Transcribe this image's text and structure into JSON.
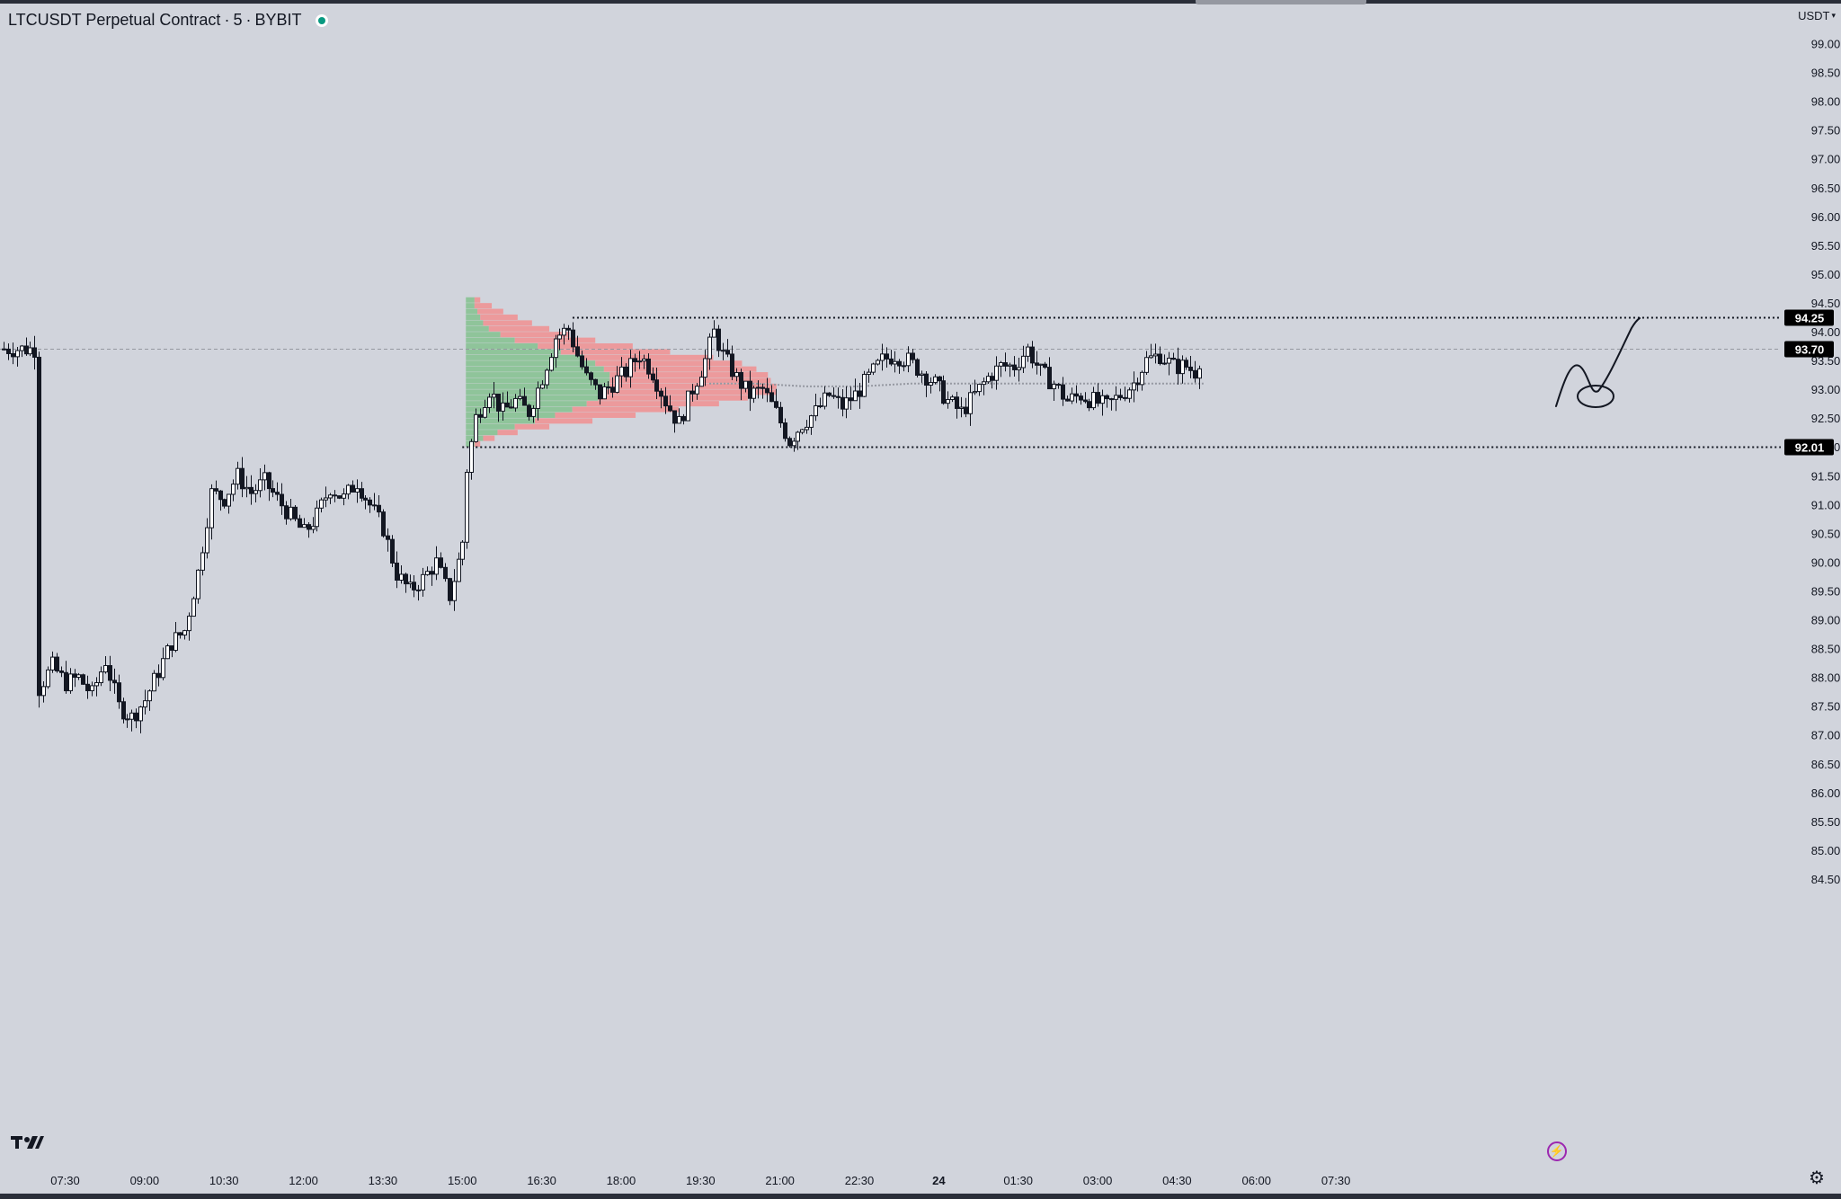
{
  "header": {
    "symbol": "LTCUSDT Perpetual Contract",
    "interval": "5",
    "exchange": "BYBIT",
    "separator": "·",
    "market_status": "open"
  },
  "price_scale": {
    "currency_label": "USDT",
    "currency_caret": "▾"
  },
  "footer": {
    "go_to_realtime_glyph": "⚡",
    "settings_glyph": "⚙"
  },
  "colors": {
    "background": "#d1d4dc",
    "volume_up": "#8fc49a",
    "volume_down": "#ec9a9c",
    "label_bg": "#000000",
    "label_fg": "#ffffff",
    "live_dot": "#089981",
    "replay_icon": "#9c27b0"
  },
  "icons": [
    "tradingview-logo-icon",
    "lightning-bolt-icon",
    "gear-icon",
    "chevron-down-icon",
    "status-dot-icon"
  ],
  "chart_data": {
    "type": "candlestick",
    "title": "LTCUSDT Perpetual Contract · 5 · BYBIT",
    "y_ticks": [
      "99.00",
      "98.50",
      "98.00",
      "97.50",
      "97.00",
      "96.50",
      "96.00",
      "95.50",
      "95.00",
      "94.50",
      "94.00",
      "93.50",
      "93.00",
      "92.50",
      "92.00",
      "91.50",
      "91.00",
      "90.50",
      "90.00",
      "89.50",
      "89.00",
      "88.50",
      "88.00",
      "87.50",
      "87.00",
      "86.50",
      "86.00",
      "85.50",
      "85.00",
      "84.50"
    ],
    "y_range": [
      84.25,
      99.3
    ],
    "x_ticks": [
      "07:30",
      "09:00",
      "10:30",
      "12:00",
      "13:30",
      "15:00",
      "16:30",
      "18:00",
      "19:30",
      "21:00",
      "22:30",
      "24",
      "01:30",
      "03:00",
      "04:30",
      "06:00",
      "07:30"
    ],
    "horizontal_levels": [
      {
        "label": "94.25",
        "value": 94.25,
        "style": "dotted",
        "from_time": "17:05"
      },
      {
        "label": "93.70",
        "value": 93.7,
        "style": "last_price_dashed"
      },
      {
        "label": "92.01",
        "value": 92.01,
        "style": "dotted",
        "from_time": "15:00"
      }
    ],
    "price_path": [
      [
        "07:00",
        87.8
      ],
      [
        "07:15",
        88.2
      ],
      [
        "07:30",
        87.9
      ],
      [
        "07:45",
        88.0
      ],
      [
        "08:00",
        87.7
      ],
      [
        "08:15",
        88.3
      ],
      [
        "08:30",
        87.5
      ],
      [
        "08:45",
        87.3
      ],
      [
        "09:00",
        87.6
      ],
      [
        "09:15",
        88.1
      ],
      [
        "09:30",
        88.6
      ],
      [
        "09:45",
        88.8
      ],
      [
        "10:00",
        89.8
      ],
      [
        "10:15",
        91.2
      ],
      [
        "10:30",
        91.1
      ],
      [
        "10:45",
        91.5
      ],
      [
        "11:00",
        91.2
      ],
      [
        "11:15",
        91.4
      ],
      [
        "11:30",
        91.1
      ],
      [
        "11:45",
        90.8
      ],
      [
        "12:00",
        90.5
      ],
      [
        "12:15",
        90.8
      ],
      [
        "12:30",
        91.3
      ],
      [
        "12:45",
        91.1
      ],
      [
        "13:00",
        91.4
      ],
      [
        "13:15",
        91.0
      ],
      [
        "13:30",
        90.6
      ],
      [
        "13:45",
        89.8
      ],
      [
        "14:00",
        89.5
      ],
      [
        "14:15",
        89.7
      ],
      [
        "14:30",
        90.0
      ],
      [
        "14:45",
        89.4
      ],
      [
        "15:00",
        90.3
      ],
      [
        "15:05",
        91.6
      ],
      [
        "15:15",
        92.5
      ],
      [
        "15:30",
        93.0
      ],
      [
        "15:45",
        92.6
      ],
      [
        "16:00",
        92.8
      ],
      [
        "16:15",
        92.6
      ],
      [
        "16:30",
        93.2
      ],
      [
        "16:45",
        93.9
      ],
      [
        "17:00",
        94.05
      ],
      [
        "17:10",
        93.6
      ],
      [
        "17:20",
        93.2
      ],
      [
        "17:35",
        92.9
      ],
      [
        "17:50",
        93.1
      ],
      [
        "18:05",
        93.3
      ],
      [
        "18:20",
        93.6
      ],
      [
        "18:35",
        93.3
      ],
      [
        "18:50",
        92.8
      ],
      [
        "19:05",
        92.4
      ],
      [
        "19:20",
        93.0
      ],
      [
        "19:35",
        93.5
      ],
      [
        "19:45",
        94.0
      ],
      [
        "19:55",
        93.6
      ],
      [
        "20:10",
        93.2
      ],
      [
        "20:25",
        92.9
      ],
      [
        "20:40",
        93.0
      ],
      [
        "20:55",
        92.6
      ],
      [
        "21:10",
        92.1
      ],
      [
        "21:25",
        92.4
      ],
      [
        "21:40",
        92.6
      ],
      [
        "21:55",
        92.9
      ],
      [
        "22:10",
        92.7
      ],
      [
        "22:25",
        92.9
      ],
      [
        "22:40",
        93.2
      ],
      [
        "22:55",
        93.5
      ],
      [
        "23:10",
        93.6
      ],
      [
        "23:25",
        93.5
      ],
      [
        "23:40",
        93.3
      ],
      [
        "23:55",
        93.1
      ],
      [
        "00:10",
        92.8
      ],
      [
        "00:25",
        92.6
      ],
      [
        "00:40",
        92.9
      ],
      [
        "00:55",
        93.2
      ],
      [
        "01:10",
        93.4
      ],
      [
        "01:25",
        93.4
      ],
      [
        "01:40",
        93.7
      ],
      [
        "01:55",
        93.3
      ],
      [
        "02:10",
        93.1
      ],
      [
        "02:25",
        92.8
      ],
      [
        "02:40",
        92.9
      ],
      [
        "02:55",
        92.8
      ],
      [
        "03:10",
        92.7
      ],
      [
        "03:25",
        92.9
      ],
      [
        "03:40",
        93.1
      ],
      [
        "03:55",
        93.5
      ],
      [
        "04:10",
        93.6
      ],
      [
        "04:25",
        93.4
      ],
      [
        "04:40",
        93.4
      ],
      [
        "04:50",
        93.3
      ],
      [
        "05:00",
        93.7
      ]
    ],
    "volume_profile": {
      "from_time": "15:00",
      "rows": [
        {
          "price": 94.55,
          "up": 0.03,
          "down": 0.02
        },
        {
          "price": 94.45,
          "up": 0.03,
          "down": 0.06
        },
        {
          "price": 94.35,
          "up": 0.04,
          "down": 0.09
        },
        {
          "price": 94.25,
          "up": 0.05,
          "down": 0.13
        },
        {
          "price": 94.15,
          "up": 0.06,
          "down": 0.17
        },
        {
          "price": 94.05,
          "up": 0.08,
          "down": 0.21
        },
        {
          "price": 93.95,
          "up": 0.12,
          "down": 0.24
        },
        {
          "price": 93.85,
          "up": 0.17,
          "down": 0.28
        },
        {
          "price": 93.75,
          "up": 0.25,
          "down": 0.33
        },
        {
          "price": 93.65,
          "up": 0.33,
          "down": 0.38
        },
        {
          "price": 93.55,
          "up": 0.41,
          "down": 0.45
        },
        {
          "price": 93.45,
          "up": 0.45,
          "down": 0.51
        },
        {
          "price": 93.35,
          "up": 0.48,
          "down": 0.53
        },
        {
          "price": 93.25,
          "up": 0.5,
          "down": 0.55
        },
        {
          "price": 93.15,
          "up": 0.5,
          "down": 0.56
        },
        {
          "price": 93.05,
          "up": 0.5,
          "down": 0.58
        },
        {
          "price": 92.95,
          "up": 0.48,
          "down": 0.6
        },
        {
          "price": 92.85,
          "up": 0.46,
          "down": 0.52
        },
        {
          "price": 92.75,
          "up": 0.42,
          "down": 0.46
        },
        {
          "price": 92.65,
          "up": 0.37,
          "down": 0.37
        },
        {
          "price": 92.55,
          "up": 0.31,
          "down": 0.28
        },
        {
          "price": 92.45,
          "up": 0.24,
          "down": 0.2
        },
        {
          "price": 92.35,
          "up": 0.17,
          "down": 0.12
        },
        {
          "price": 92.25,
          "up": 0.11,
          "down": 0.07
        },
        {
          "price": 92.15,
          "up": 0.06,
          "down": 0.04
        },
        {
          "price": 92.05,
          "up": 0.03,
          "down": 0.02
        }
      ]
    },
    "grid": false,
    "annotations": [
      "freehand-drawing"
    ]
  }
}
